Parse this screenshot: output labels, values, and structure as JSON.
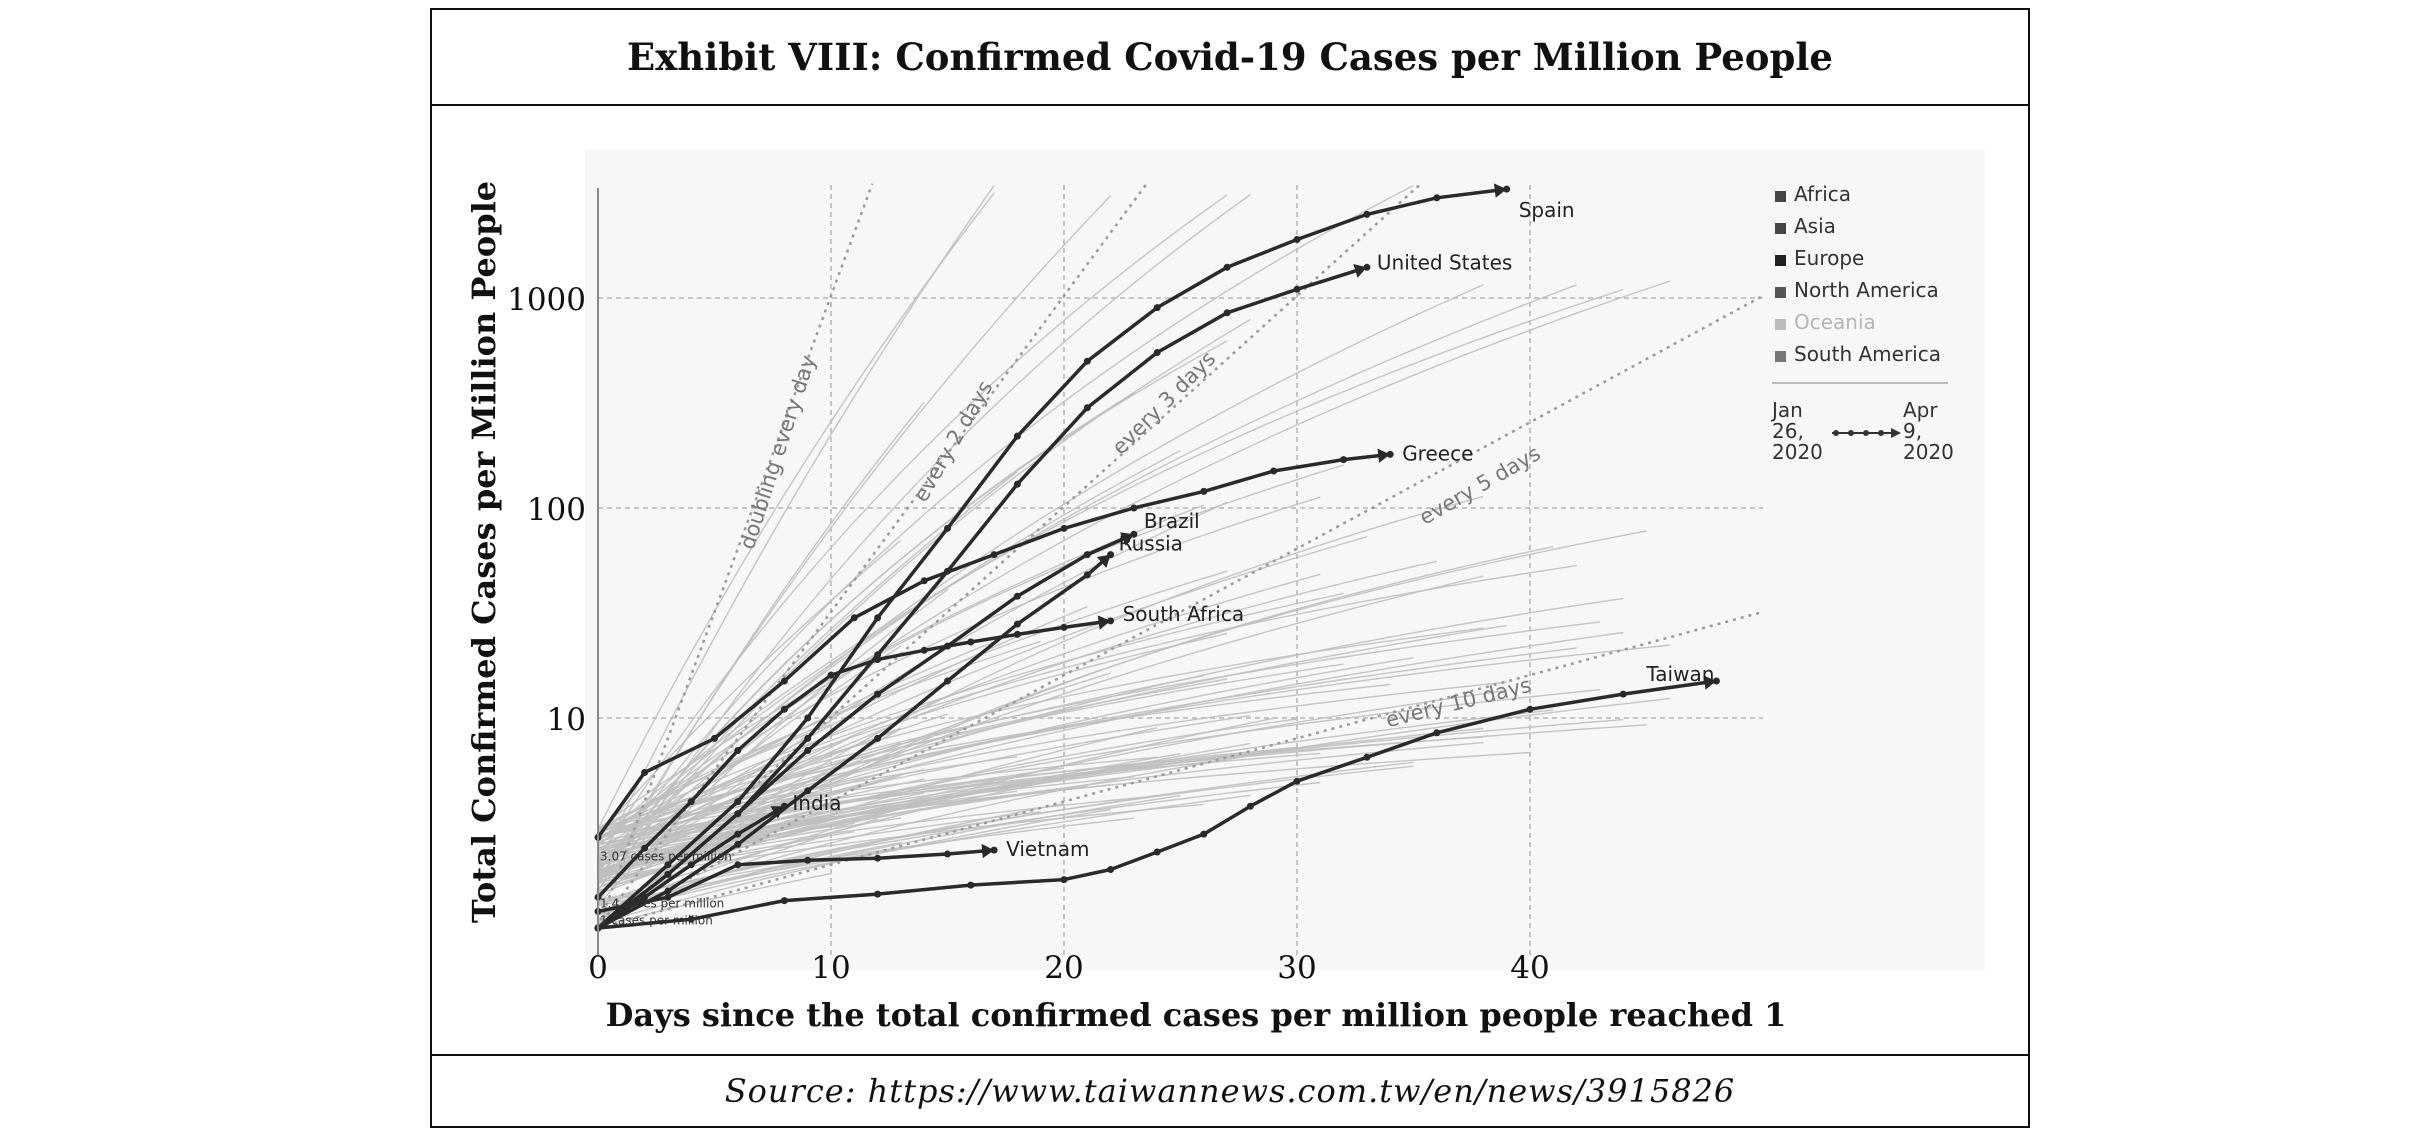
{
  "exhibit_title": "Exhibit VIII: Confirmed Covid-19 Cases per Million People",
  "source": "Source: https://www.taiwannews.com.tw/en/news/3915826",
  "chart_data": {
    "type": "line",
    "title": "Exhibit VIII: Confirmed Covid-19 Cases per Million People",
    "xlabel": "Days since the total confirmed cases per million people reached 1",
    "ylabel": "Total Confirmed Cases per Million People",
    "y_scale": "log",
    "xlim": [
      0,
      50
    ],
    "ylim": [
      1,
      3500
    ],
    "x_ticks": [
      0,
      10,
      20,
      30,
      40
    ],
    "x_tick_labels": [
      "0",
      "10",
      "20",
      "30",
      "40"
    ],
    "y_ticks": [
      10,
      100,
      1000
    ],
    "y_tick_labels": [
      "10",
      "100",
      "1000"
    ],
    "grid": true,
    "legend_position": "top-right",
    "legend": [
      "Africa",
      "Asia",
      "Europe",
      "North America",
      "Oceania",
      "South America"
    ],
    "legend_colors": [
      "#444444",
      "#444444",
      "#222222",
      "#555555",
      "#bbbbbb",
      "#777777"
    ],
    "time_legend": {
      "start": "Jan 26, 2020",
      "end": "Apr 9, 2020"
    },
    "start_annotations": [
      "3.07 cases per million",
      "1.4 cases per million",
      "1 cases per million"
    ],
    "reference_lines": [
      {
        "name": "doubling every day",
        "doubling_days": 1,
        "start": 1
      },
      {
        "name": "every 2 days",
        "doubling_days": 2,
        "start": 1
      },
      {
        "name": "every 3 days",
        "doubling_days": 3,
        "start": 1
      },
      {
        "name": "every 5 days",
        "doubling_days": 5,
        "start": 1
      },
      {
        "name": "every 10 days",
        "doubling_days": 10,
        "start": 1
      }
    ],
    "series": [
      {
        "name": "Spain",
        "x": [
          0,
          3,
          6,
          9,
          12,
          15,
          18,
          21,
          24,
          27,
          30,
          33,
          36,
          39
        ],
        "y": [
          1,
          2,
          4,
          10,
          30,
          80,
          220,
          500,
          900,
          1400,
          1900,
          2500,
          3000,
          3300
        ]
      },
      {
        "name": "United States",
        "x": [
          0,
          3,
          6,
          9,
          12,
          15,
          18,
          21,
          24,
          27,
          30,
          33
        ],
        "y": [
          1,
          1.8,
          3.5,
          8,
          20,
          50,
          130,
          300,
          550,
          850,
          1100,
          1400
        ]
      },
      {
        "name": "Greece",
        "x": [
          0,
          2,
          5,
          8,
          11,
          14,
          17,
          20,
          23,
          26,
          29,
          32,
          34
        ],
        "y": [
          2.7,
          5.5,
          8,
          15,
          30,
          45,
          60,
          80,
          100,
          120,
          150,
          170,
          180
        ]
      },
      {
        "name": "Brazil",
        "x": [
          0,
          3,
          6,
          9,
          12,
          15,
          18,
          21,
          23
        ],
        "y": [
          1,
          1.8,
          3.5,
          7,
          13,
          22,
          38,
          60,
          75
        ]
      },
      {
        "name": "Russia",
        "x": [
          0,
          3,
          6,
          9,
          12,
          15,
          18,
          21,
          22
        ],
        "y": [
          1,
          1.5,
          2.5,
          4.5,
          8,
          15,
          28,
          48,
          60
        ]
      },
      {
        "name": "South Africa",
        "x": [
          0,
          2,
          4,
          6,
          8,
          10,
          12,
          14,
          16,
          18,
          20,
          22
        ],
        "y": [
          1.4,
          2.4,
          4,
          7,
          11,
          16,
          19,
          21,
          23,
          25,
          27,
          29
        ]
      },
      {
        "name": "India",
        "x": [
          0,
          2,
          4,
          6,
          8
        ],
        "y": [
          1,
          1.4,
          2,
          2.8,
          3.8
        ]
      },
      {
        "name": "Vietnam",
        "x": [
          0,
          3,
          6,
          9,
          12,
          15,
          17
        ],
        "y": [
          1.2,
          1.4,
          2,
          2.1,
          2.15,
          2.25,
          2.35
        ]
      },
      {
        "name": "Taiwan",
        "x": [
          0,
          4,
          8,
          12,
          16,
          20,
          22,
          24,
          26,
          28,
          30,
          33,
          36,
          40,
          44,
          48
        ],
        "y": [
          1,
          1.1,
          1.35,
          1.45,
          1.6,
          1.7,
          1.9,
          2.3,
          2.8,
          3.8,
          5,
          6.5,
          8.5,
          11,
          13,
          15
        ]
      }
    ]
  }
}
